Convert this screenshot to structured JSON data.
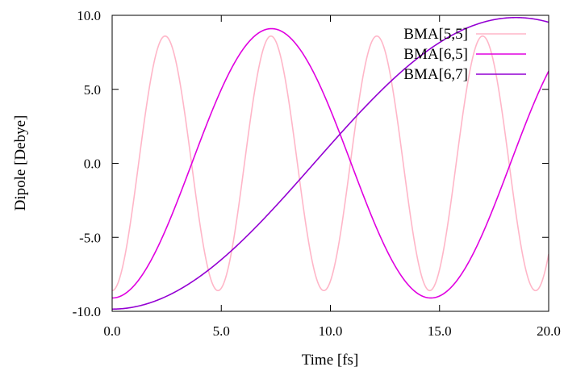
{
  "chart_data": {
    "type": "line",
    "title": "",
    "xlabel": "Time [fs]",
    "ylabel": "Dipole [Debye]",
    "xlim": [
      0,
      20
    ],
    "ylim": [
      -10,
      10
    ],
    "x_ticks": [
      0,
      5,
      10,
      15,
      20
    ],
    "y_ticks": [
      -10,
      -5,
      0,
      5,
      10
    ],
    "x_tick_labels": [
      "0.0",
      "5.0",
      "10.0",
      "15.0",
      "20.0"
    ],
    "y_tick_labels": [
      "-10.0",
      "-5.0",
      "0.0",
      "5.0",
      "10.0"
    ],
    "grid": false,
    "legend_position": "top-right",
    "series": [
      {
        "name": "BMA[5,5]",
        "color": "#ffb6c8",
        "amplitude": 8.6,
        "period_fs": 4.85,
        "phase_rad": 3.14159,
        "x": [
          0,
          1.2,
          2.4,
          3.6,
          4.85,
          6.05,
          7.3,
          8.5,
          9.7,
          10.9,
          12.1,
          13.3,
          14.55,
          15.75,
          16.95,
          18.2,
          19.4,
          20
        ],
        "y": [
          -8.6,
          0.0,
          8.6,
          0.0,
          -8.6,
          0.0,
          8.6,
          0.0,
          -8.6,
          0.0,
          8.6,
          0.0,
          -8.6,
          0.0,
          8.6,
          0.0,
          -8.6,
          -6.9
        ]
      },
      {
        "name": "BMA[6,5]",
        "color": "#e000e0",
        "amplitude": 9.1,
        "period_fs": 14.6,
        "phase_rad": 3.14159,
        "x": [
          0,
          1.8,
          3.65,
          5.5,
          7.3,
          9.1,
          10.95,
          12.8,
          14.6,
          16.4,
          18.25,
          20
        ],
        "y": [
          -9.1,
          -6.4,
          0.0,
          6.4,
          9.1,
          6.4,
          0.0,
          -6.4,
          -9.1,
          -6.4,
          0.0,
          6.1
        ]
      },
      {
        "name": "BMA[6,7]",
        "color": "#9400d3",
        "amplitude": 9.85,
        "period_fs": 37.0,
        "phase_rad": 3.14159,
        "x": [
          0,
          2,
          4,
          6,
          8,
          9.25,
          10,
          12,
          14,
          16,
          18.5,
          20
        ],
        "y": [
          -9.85,
          -9.3,
          -7.7,
          -5.3,
          -2.2,
          0.0,
          1.3,
          4.6,
          7.3,
          9.1,
          9.85,
          9.6
        ]
      }
    ]
  }
}
